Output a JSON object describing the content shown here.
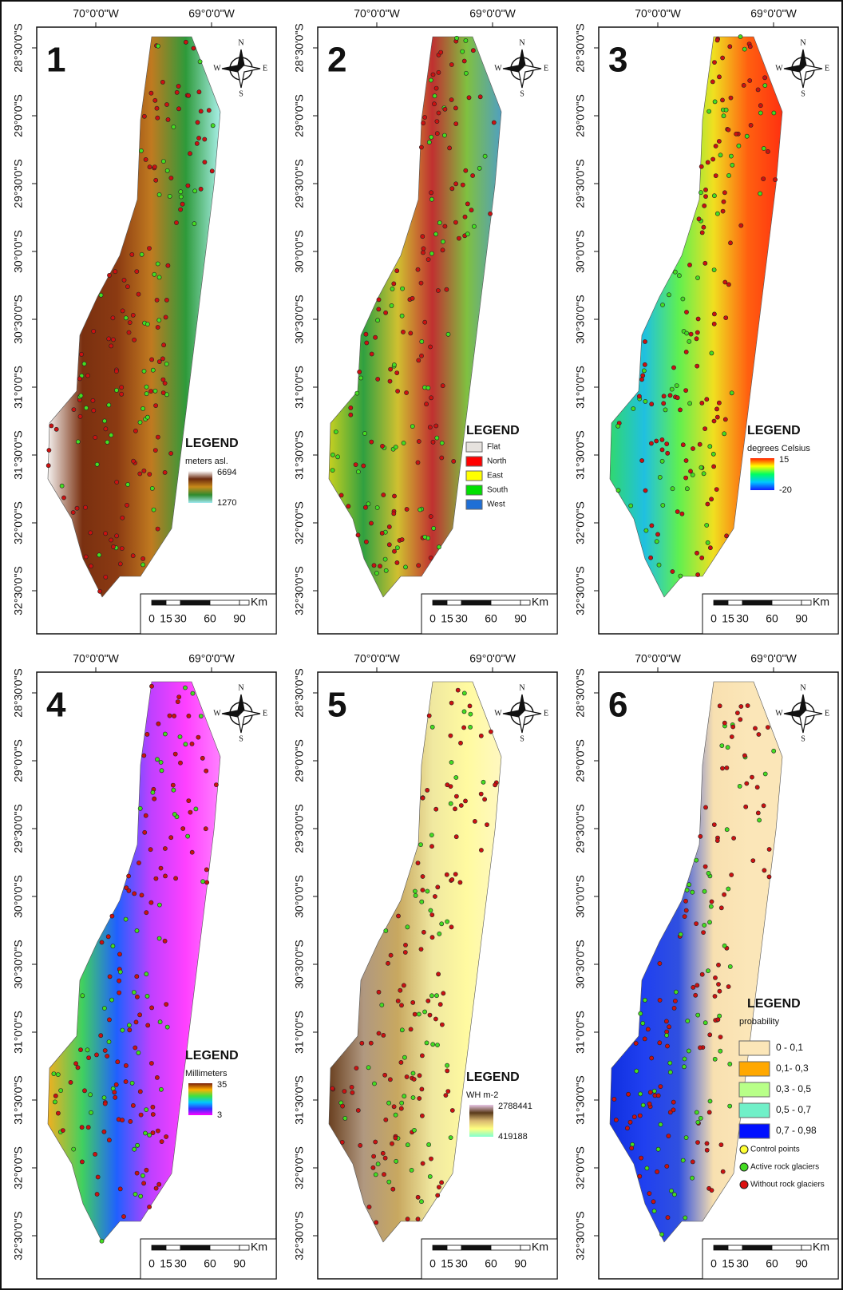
{
  "lon_labels": [
    "70°0'0\"W",
    "69°0'0\"W"
  ],
  "lat_labels": [
    "28°30'0\"S",
    "29°0'0\"S",
    "29°30'0\"S",
    "30°0'0\"S",
    "30°30'0\"S",
    "31°0'0\"S",
    "31°30'0\"S",
    "32°0'0\"S",
    "32°30'0\"S"
  ],
  "compass": {
    "n": "N",
    "w": "W",
    "e": "E",
    "s": "S"
  },
  "scale_bar": {
    "unit": "Km",
    "ticks": [
      "0",
      "15",
      "30",
      "60",
      "90"
    ]
  },
  "panels": [
    {
      "number": "1",
      "legend": {
        "title": "LEGEND",
        "unit": "meters asl.",
        "max": "6694",
        "min": "1270",
        "ramp": [
          "#ffffff",
          "#6b2a0e",
          "#c88a1a",
          "#2e8b2e",
          "#9fe8f0"
        ]
      }
    },
    {
      "number": "2",
      "legend": {
        "title": "LEGEND",
        "classes": [
          {
            "label": "Flat",
            "color": "#e6e2de"
          },
          {
            "label": "North",
            "color": "#ff0000"
          },
          {
            "label": "East",
            "color": "#ffff00"
          },
          {
            "label": "South",
            "color": "#00e000"
          },
          {
            "label": "West",
            "color": "#1f6fd6"
          }
        ]
      }
    },
    {
      "number": "3",
      "legend": {
        "title": "LEGEND",
        "unit": "degrees Celsius",
        "max": "15",
        "min": "-20",
        "ramp": [
          "#ff2000",
          "#ffff00",
          "#00ff60",
          "#00c8ff",
          "#1020ff"
        ]
      }
    },
    {
      "number": "4",
      "legend": {
        "title": "LEGEND",
        "unit": "Millimeters",
        "max": "35",
        "min": "3",
        "ramp": [
          "#7a1e0a",
          "#ffb000",
          "#40e040",
          "#00c8ff",
          "#3030ff",
          "#ff00ff"
        ]
      }
    },
    {
      "number": "5",
      "legend": {
        "title": "LEGEND",
        "unit": "WH m-2",
        "max": "2788441",
        "min": "419188",
        "ramp": [
          "#e8c8e8",
          "#5a3a1a",
          "#d8b870",
          "#ffff80",
          "#80ffd0"
        ]
      }
    },
    {
      "number": "6",
      "legend": {
        "title": "LEGEND",
        "unit": "probability",
        "classes": [
          {
            "label": "0 - 0,1",
            "color": "#fbe6b8"
          },
          {
            "label": "0,1- 0,3",
            "color": "#ffa800"
          },
          {
            "label": "0,3 - 0,5",
            "color": "#b8ff88"
          },
          {
            "label": "0,5 - 0,7",
            "color": "#70f0c8"
          },
          {
            "label": "0,7 - 0,98",
            "color": "#0010ff"
          }
        ],
        "points": [
          {
            "label": "Control points",
            "color": "#ffff33"
          },
          {
            "label": "Active rock glaciers",
            "color": "#44dd22"
          },
          {
            "label": "Without rock glaciers",
            "color": "#dd1111"
          }
        ]
      }
    }
  ]
}
